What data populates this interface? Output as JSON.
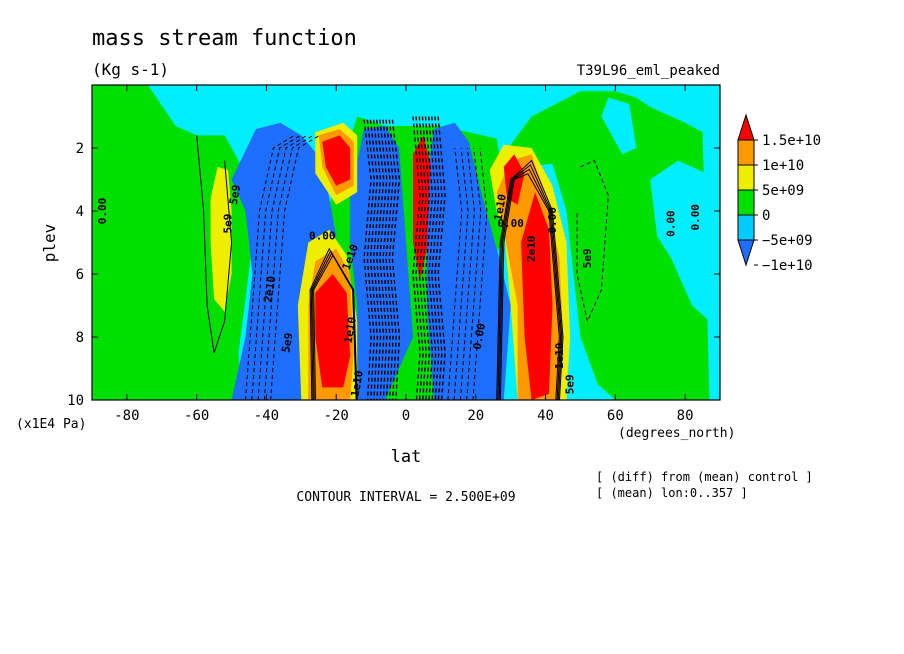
{
  "chart_data": {
    "type": "heatmap",
    "title": "mass stream function",
    "units": "(Kg s-1)",
    "experiment": "T39L96_eml_peaked",
    "xlabel": "lat",
    "x_units": "(degrees_north)",
    "ylabel": "plev",
    "y_units": "(x1E4 Pa)",
    "xlim": [
      -90,
      90
    ],
    "ylim": [
      10,
      0
    ],
    "x_ticks": [
      -80,
      -60,
      -40,
      -20,
      0,
      20,
      40,
      60,
      80
    ],
    "y_ticks": [
      2,
      4,
      6,
      8,
      10
    ],
    "x_tick_labels": [
      "-80",
      "-60",
      "-40",
      "-20",
      "0",
      "20",
      "40",
      "60",
      "80"
    ],
    "y_tick_labels": [
      "2",
      "4",
      "6",
      "8",
      "10"
    ],
    "contour_interval_text": "CONTOUR INTERVAL = 2.500E+09",
    "notes": [
      "[ (diff) from (mean) control ]",
      "[ (mean) lon:0..357 ]"
    ],
    "legend": {
      "placement": "right",
      "labels": [
        "1.5e+10",
        "1e+10",
        "5e+09",
        "0",
        "−5e+09",
        "−1e+10"
      ],
      "levels": [
        -15000000000.0,
        -10000000000.0,
        -5000000000.0,
        0,
        5000000000.0,
        10000000000.0,
        15000000000.0
      ],
      "colors": [
        "#1e6eff",
        "#00ccff",
        "#00e000",
        "#eeee00",
        "#ff9900",
        "#ff0000"
      ]
    },
    "features": [
      {
        "lat": -53,
        "plev": 5.0,
        "value": 6000000000.0
      },
      {
        "lat": -48,
        "plev": 4.5,
        "value": -6000000000.0
      },
      {
        "lat": -35,
        "plev": 6.0,
        "value": -9000000000.0
      },
      {
        "lat": -22,
        "plev": 7.5,
        "value": 14000000000.0
      },
      {
        "lat": -21,
        "plev": 2.4,
        "value": 12000000000.0
      },
      {
        "lat": -8,
        "plev": 5.5,
        "value": -20000000000.0
      },
      {
        "lat": 3,
        "plev": 3.5,
        "value": 16000000000.0
      },
      {
        "lat": 3,
        "plev": 7.0,
        "value": -20000000000.0
      },
      {
        "lat": 22,
        "plev": 6.5,
        "value": -9000000000.0
      },
      {
        "lat": 30,
        "plev": 3.0,
        "value": 16000000000.0
      },
      {
        "lat": 38,
        "plev": 6.5,
        "value": 15000000000.0
      },
      {
        "lat": 52,
        "plev": 5.0,
        "value": -6000000000.0
      },
      {
        "lat": 70,
        "plev": 4.0,
        "value": 4000000000.0
      },
      {
        "lat": -85,
        "plev": 7.0,
        "value": 3000000000.0
      }
    ],
    "contour_labels": [
      "0.00",
      "5e9",
      "5e9",
      "0.00",
      "1e10",
      "2e10",
      "5e9",
      "1e10",
      "1e10",
      "0.00",
      "0.00",
      "1e10",
      "2e10",
      "0.00",
      "5e9",
      "1e10",
      "5e9",
      "0.00",
      "0.00"
    ]
  }
}
